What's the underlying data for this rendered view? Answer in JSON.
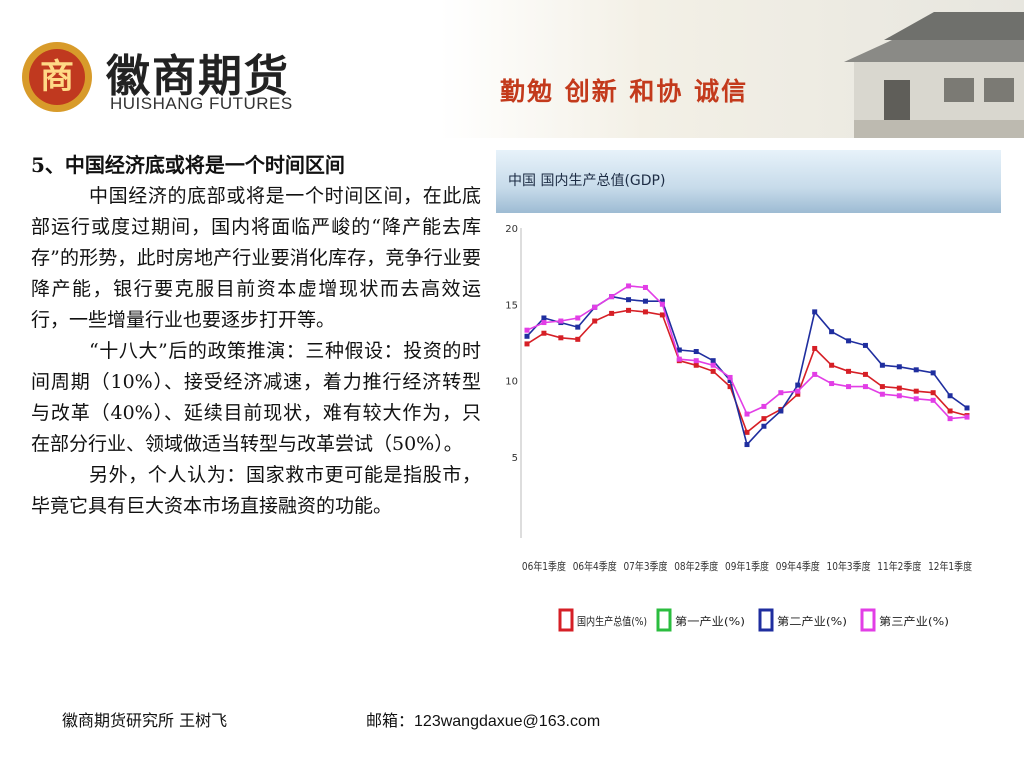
{
  "header": {
    "logo_badge": "商",
    "logo_cn": "徽商期货",
    "logo_en": "HUISHANG FUTURES",
    "motto": "勤勉  创新  和协  诚信",
    "brand_color": "#c0391f",
    "icon": "ancient-house-icon"
  },
  "content": {
    "title": "5、中国经济底或将是一个时间区间",
    "para1": "中国经济的底部或将是一个时间区间，在此底部运行或度过期间，国内将面临严峻的“降产能去库存”的形势，此时房地产行业要消化库存，竞争行业要降产能，银行要克服目前资本虚增现状而去高效运行，一些增量行业也要逐步打开等。",
    "para2": "“十八大”后的政策推演：三种假设：投资的时间周期（10%）、接受经济减速，着力推行经济转型与改革（40%）、延续目前现状，难有较大作为，只在部分行业、领域做适当转型与改革尝试（50%）。",
    "para3": "另外，个人认为：国家救市更可能是指股市，毕竟它具有巨大资本市场直接融资的功能。"
  },
  "footer": {
    "left": "徽商期货研究所 王树飞",
    "email_label": "邮箱：",
    "email": "123wangdaxue@163.com"
  },
  "chart_data": {
    "type": "line",
    "title": "中国 国内生产总值(GDP)",
    "ylim": [
      0,
      20
    ],
    "yticks": [
      "5",
      "10",
      "15",
      "20"
    ],
    "ytick_values": [
      5,
      10,
      15,
      20
    ],
    "grid": false,
    "legend_position": "bottom",
    "x_tick_labels": [
      "06年1季度",
      "06年4季度",
      "07年3季度",
      "08年2季度",
      "09年1季度",
      "09年4季度",
      "10年3季度",
      "11年2季度",
      "12年1季度"
    ],
    "x_tick_indices": [
      0,
      3,
      6,
      9,
      12,
      15,
      18,
      21,
      24
    ],
    "x_count": 27,
    "series": [
      {
        "name": "国内生产总值(%)",
        "color": "#d61f26",
        "values": [
          12.4,
          13.1,
          12.8,
          12.7,
          13.9,
          14.4,
          14.6,
          14.5,
          14.3,
          11.3,
          11.0,
          10.6,
          9.6,
          6.6,
          7.5,
          8.1,
          9.1,
          12.1,
          11.0,
          10.6,
          10.4,
          9.6,
          9.5,
          9.3,
          9.2,
          8.0,
          7.7
        ]
      },
      {
        "name": "第一产业(%)",
        "color": "#2bbd3f",
        "values": []
      },
      {
        "name": "第二产业(%)",
        "color": "#1f2e9f",
        "values": [
          12.9,
          14.1,
          13.8,
          13.5,
          14.8,
          15.5,
          15.3,
          15.2,
          15.2,
          12.0,
          11.9,
          11.3,
          10.0,
          5.8,
          7.0,
          8.0,
          9.7,
          14.5,
          13.2,
          12.6,
          12.3,
          11.0,
          10.9,
          10.7,
          10.5,
          9.0,
          8.2
        ]
      },
      {
        "name": "第三产业(%)",
        "color": "#e23ee6",
        "values": [
          13.3,
          13.8,
          13.9,
          14.1,
          14.8,
          15.5,
          16.2,
          16.1,
          15.0,
          11.4,
          11.3,
          11.0,
          10.2,
          7.8,
          8.3,
          9.2,
          9.3,
          10.4,
          9.8,
          9.6,
          9.6,
          9.1,
          9.0,
          8.8,
          8.7,
          7.5,
          7.6
        ]
      }
    ]
  }
}
